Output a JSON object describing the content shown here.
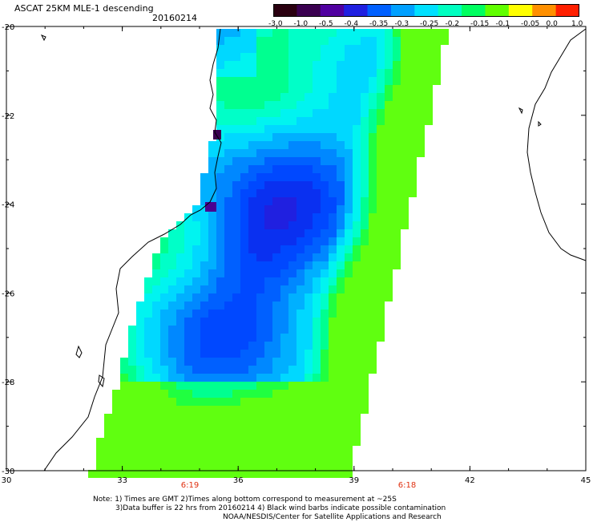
{
  "title": "ASCAT 25KM MLE-1 descending",
  "date": "20160214",
  "colorbar": {
    "labels": [
      "-3.0",
      "-1.0",
      "-0.5",
      "-0.4",
      "-0.35",
      "-0.3",
      "-0.25",
      "-0.2",
      "-0.15",
      "-0.1",
      "-0.05",
      "0.0",
      "1.0"
    ],
    "colors": [
      "#2a0010",
      "#3a0050",
      "#5000a0",
      "#2020e0",
      "#0060ff",
      "#00a0ff",
      "#00e0ff",
      "#00ffc0",
      "#00ff60",
      "#60ff00",
      "#ffff00",
      "#ff9000",
      "#ff2000"
    ]
  },
  "axes": {
    "x_labels": [
      "30",
      "33",
      "36",
      "39",
      "42",
      "45"
    ],
    "y_labels": [
      "-20",
      "-22",
      "-24",
      "-26",
      "-28",
      "-30"
    ],
    "time_labels": [
      "6:19",
      "6:18"
    ],
    "time_color": "#e03010"
  },
  "notes": {
    "line1": "Note: 1) Times are GMT 2)Times along bottom correspond to measurement at ~25S",
    "line2": "3)Data buffer is 22 hrs from 20160214 4) Black wind barbs indicate possible contamination",
    "line3": "NOAA/NESDIS/Center for Satellite Applications and Research"
  }
}
